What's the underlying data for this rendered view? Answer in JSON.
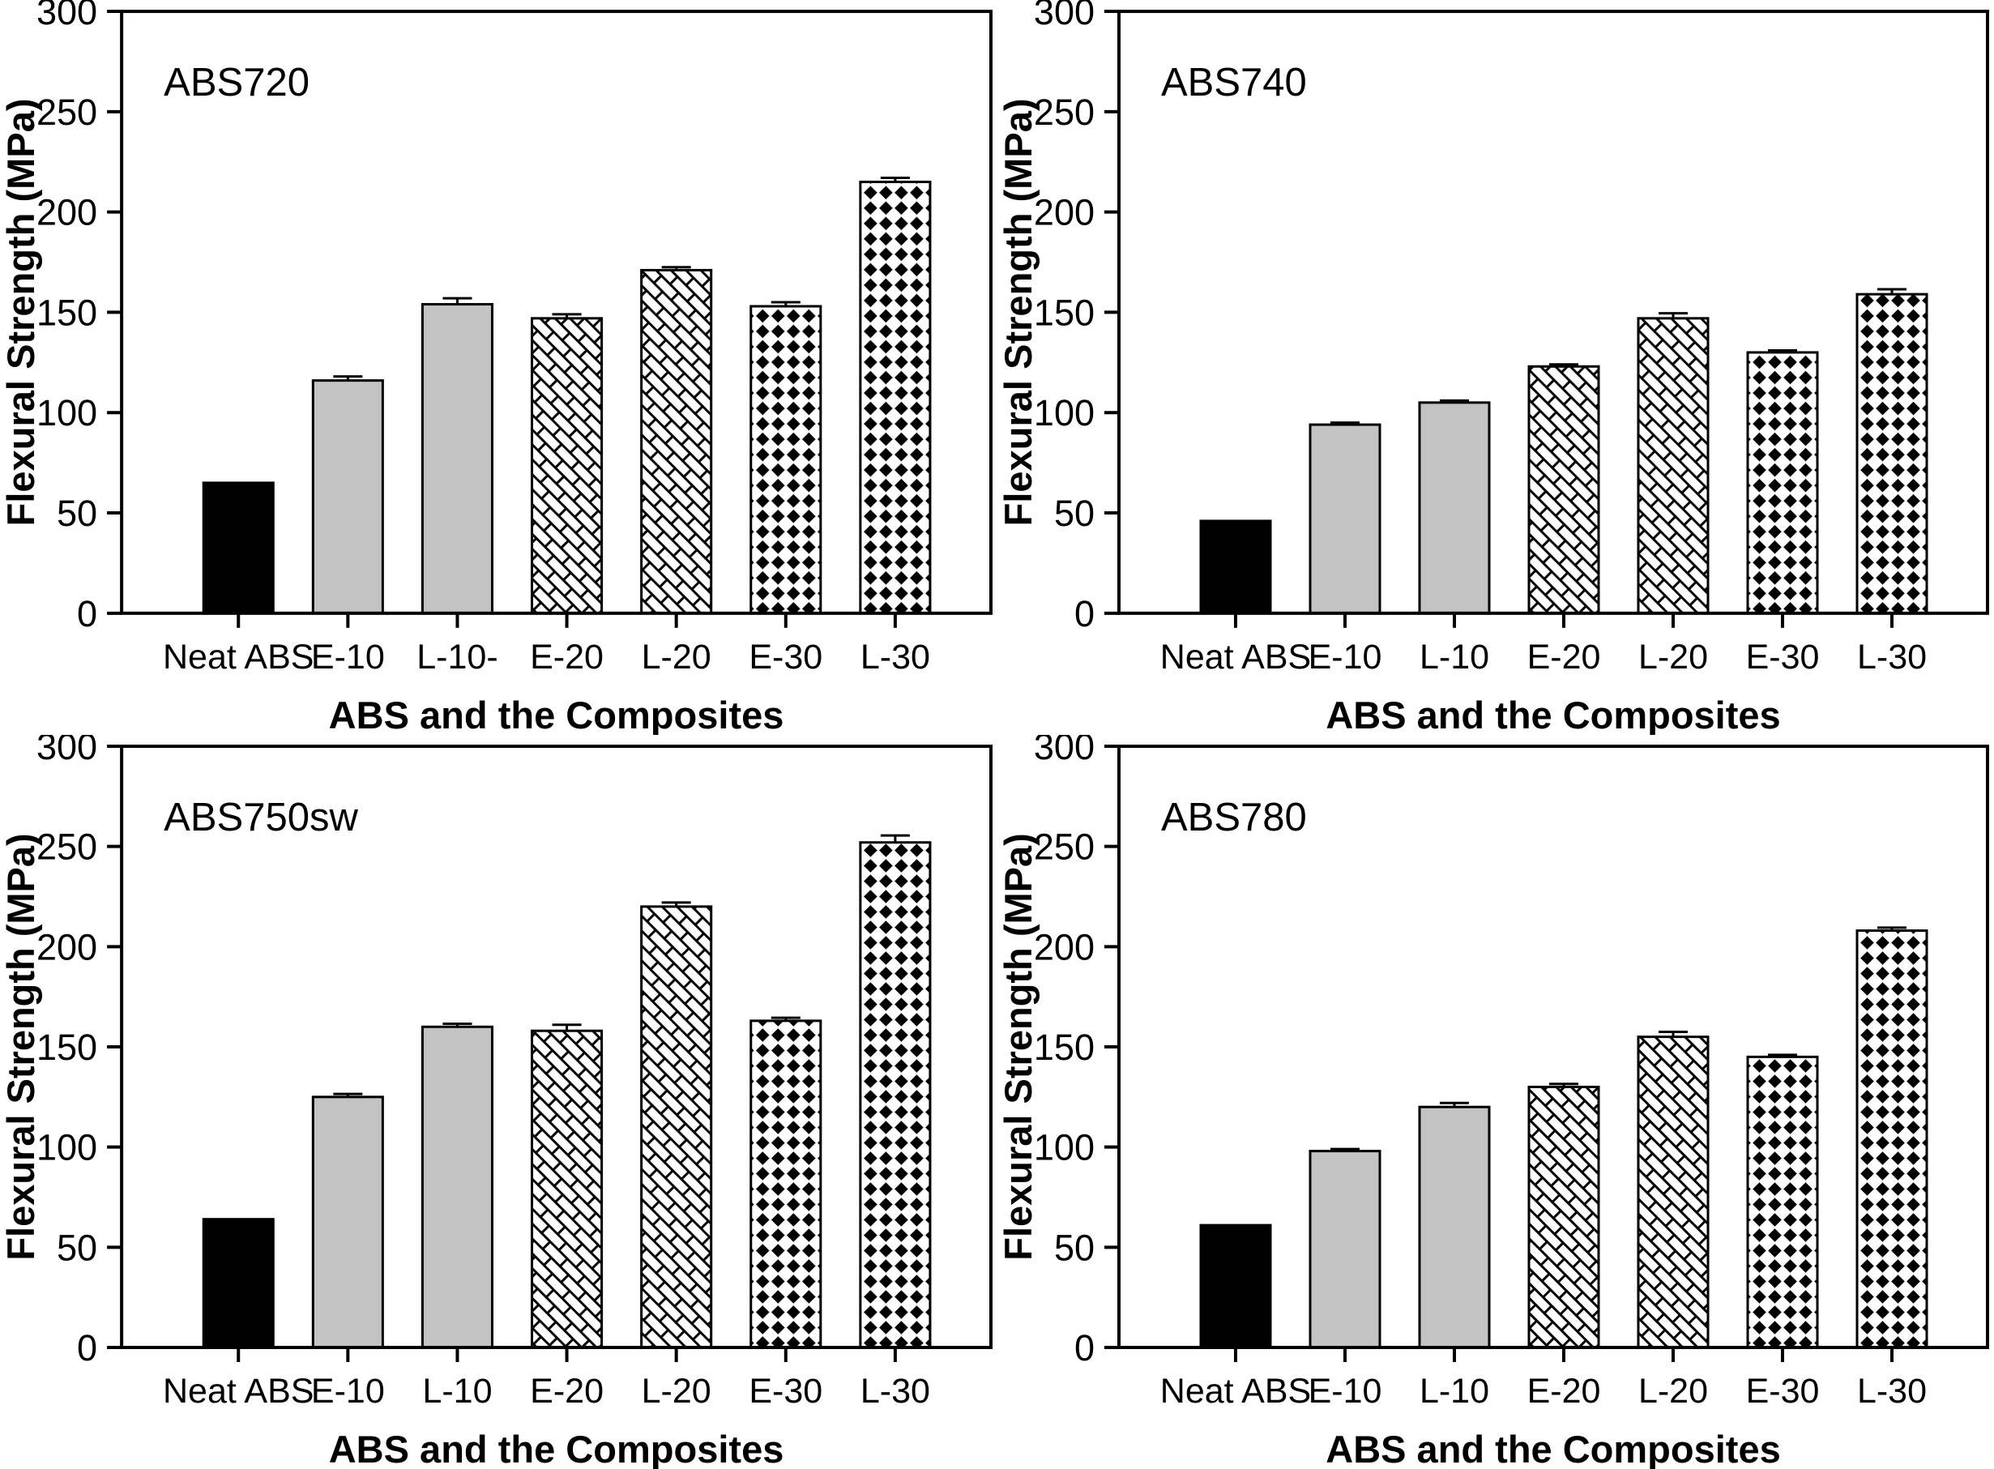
{
  "figure": {
    "ylabel": "Flexural Strength (MPa)",
    "xlabel": "ABS and the Composites",
    "y_ticks": [
      0,
      50,
      100,
      150,
      200,
      250,
      300
    ]
  },
  "colors": {
    "bar_black": "#000000",
    "bar_gray": "#c3c3c3",
    "axis": "#000000",
    "background": "#ffffff"
  },
  "chart_data": [
    {
      "type": "bar",
      "title": "ABS720",
      "categories": [
        "Neat ABS",
        "E-10",
        "L-10-",
        "E-20",
        "L-20",
        "E-30",
        "L-30"
      ],
      "values": [
        65,
        116,
        154,
        147,
        171,
        153,
        215
      ],
      "errors": [
        0,
        2,
        3,
        2,
        1.5,
        2,
        2
      ],
      "bar_styles": [
        "solid-black",
        "solid-gray",
        "solid-gray",
        "crosshatch",
        "crosshatch",
        "diamond",
        "diamond"
      ],
      "xlabel": "ABS and the Composites",
      "ylabel": "Flexural Strength (MPa)",
      "ylim": [
        0,
        300
      ],
      "grid": false,
      "legend": "none"
    },
    {
      "type": "bar",
      "title": "ABS740",
      "categories": [
        "Neat ABS",
        "E-10",
        "L-10",
        "E-20",
        "L-20",
        "E-30",
        "L-30"
      ],
      "values": [
        46,
        94,
        105,
        123,
        147,
        130,
        159
      ],
      "errors": [
        0,
        1,
        1,
        1,
        2.5,
        1,
        2.5
      ],
      "bar_styles": [
        "solid-black",
        "solid-gray",
        "solid-gray",
        "crosshatch",
        "crosshatch",
        "diamond",
        "diamond"
      ],
      "xlabel": "ABS and the Composites",
      "ylabel": "Flexural Strength (MPa)",
      "ylim": [
        0,
        300
      ],
      "grid": false,
      "legend": "none"
    },
    {
      "type": "bar",
      "title": "ABS750sw",
      "categories": [
        "Neat ABS",
        "E-10",
        "L-10",
        "E-20",
        "L-20",
        "E-30",
        "L-30"
      ],
      "values": [
        64,
        125,
        160,
        158,
        220,
        163,
        252
      ],
      "errors": [
        0,
        1.5,
        1.5,
        3,
        2,
        1.5,
        3.5
      ],
      "bar_styles": [
        "solid-black",
        "solid-gray",
        "solid-gray",
        "crosshatch",
        "crosshatch",
        "diamond",
        "diamond"
      ],
      "xlabel": "ABS and the Composites",
      "ylabel": "Flexural Strength (MPa)",
      "ylim": [
        0,
        300
      ],
      "grid": false,
      "legend": "none"
    },
    {
      "type": "bar",
      "title": "ABS780",
      "categories": [
        "Neat ABS",
        "E-10",
        "L-10",
        "E-20",
        "L-20",
        "E-30",
        "L-30"
      ],
      "values": [
        61,
        98,
        120,
        130,
        155,
        145,
        208
      ],
      "errors": [
        0,
        1,
        2,
        1.5,
        2.5,
        1,
        1.5
      ],
      "bar_styles": [
        "solid-black",
        "solid-gray",
        "solid-gray",
        "crosshatch",
        "crosshatch",
        "diamond",
        "diamond"
      ],
      "xlabel": "ABS and the Composites",
      "ylabel": "Flexural Strength (MPa)",
      "ylim": [
        0,
        300
      ],
      "grid": false,
      "legend": "none"
    }
  ]
}
